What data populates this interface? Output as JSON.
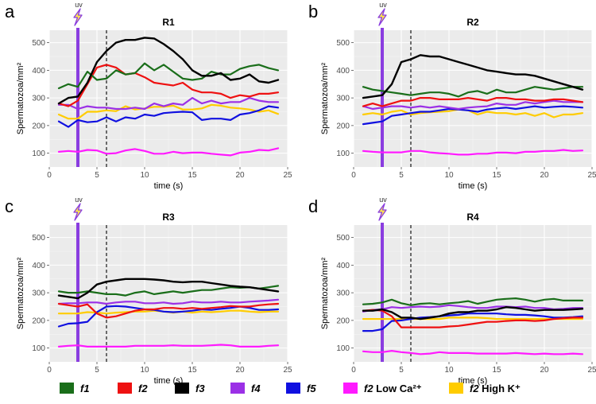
{
  "chart_data": {
    "type": "line",
    "shared": {
      "xlabel": "time (s)",
      "ylabel": "Spermatozoa/mm²",
      "xlim": [
        0,
        25
      ],
      "ylim": [
        50,
        545
      ],
      "xticks": [
        0,
        5,
        10,
        15,
        20,
        25
      ],
      "yticks": [
        100,
        200,
        300,
        400,
        500
      ],
      "uv_time": 3,
      "uv_label": "uv",
      "dashed_time": 6,
      "grid": true,
      "legend_position": "bottom"
    },
    "x": [
      1,
      2,
      3,
      4,
      5,
      6,
      7,
      8,
      9,
      10,
      11,
      12,
      13,
      14,
      15,
      16,
      17,
      18,
      19,
      20,
      21,
      22,
      23,
      24
    ],
    "legend": [
      {
        "key": "f1",
        "name": "f1",
        "suffix": "",
        "color": "#1a6e1a"
      },
      {
        "key": "f2",
        "name": "f2",
        "suffix": "",
        "color": "#ee1111"
      },
      {
        "key": "f3",
        "name": "f3",
        "suffix": "",
        "color": "#000000"
      },
      {
        "key": "f4",
        "name": "f4",
        "suffix": "",
        "color": "#9b30e6"
      },
      {
        "key": "f5",
        "name": "f5",
        "suffix": "",
        "color": "#1010e0"
      },
      {
        "key": "lowca",
        "name": "f2",
        "suffix": " Low Ca²⁺",
        "color": "#ff1aff"
      },
      {
        "key": "highk",
        "name": "f2",
        "suffix": " High K⁺",
        "color": "#ffcc00"
      }
    ],
    "panels": [
      {
        "letter": "a",
        "title": "R1",
        "series": {
          "f1": [
            335,
            350,
            340,
            395,
            365,
            370,
            400,
            385,
            390,
            425,
            400,
            420,
            395,
            370,
            365,
            370,
            395,
            385,
            385,
            405,
            415,
            420,
            408,
            400
          ],
          "f2": [
            280,
            270,
            290,
            350,
            410,
            420,
            410,
            385,
            390,
            375,
            355,
            350,
            345,
            355,
            330,
            320,
            320,
            315,
            300,
            310,
            305,
            315,
            315,
            320
          ],
          "f3": [
            280,
            300,
            305,
            355,
            430,
            470,
            500,
            510,
            510,
            518,
            515,
            495,
            470,
            440,
            400,
            380,
            380,
            390,
            365,
            370,
            385,
            360,
            355,
            365
          ],
          "f4": [
            275,
            275,
            260,
            270,
            265,
            265,
            260,
            260,
            265,
            260,
            280,
            270,
            280,
            275,
            300,
            280,
            290,
            280,
            285,
            285,
            300,
            290,
            285,
            285
          ],
          "f5": [
            215,
            195,
            220,
            212,
            215,
            230,
            215,
            230,
            225,
            240,
            235,
            245,
            248,
            250,
            248,
            220,
            225,
            225,
            220,
            240,
            245,
            255,
            270,
            265
          ],
          "lowca": [
            105,
            108,
            105,
            112,
            110,
            98,
            100,
            110,
            115,
            108,
            98,
            98,
            105,
            100,
            102,
            102,
            98,
            95,
            92,
            102,
            105,
            112,
            110,
            118
          ],
          "highk": [
            240,
            225,
            225,
            250,
            250,
            255,
            252,
            270,
            258,
            262,
            268,
            268,
            272,
            258,
            258,
            262,
            275,
            272,
            265,
            262,
            258,
            250,
            255,
            242
          ]
        }
      },
      {
        "letter": "b",
        "title": "R2",
        "series": {
          "f1": [
            340,
            330,
            325,
            320,
            315,
            310,
            315,
            320,
            320,
            315,
            305,
            320,
            325,
            315,
            330,
            320,
            320,
            330,
            340,
            335,
            330,
            335,
            340,
            340
          ],
          "f2": [
            270,
            280,
            270,
            280,
            290,
            290,
            300,
            300,
            295,
            295,
            295,
            300,
            295,
            290,
            300,
            300,
            295,
            295,
            290,
            290,
            295,
            295,
            290,
            285
          ],
          "f3": [
            300,
            305,
            310,
            350,
            430,
            440,
            455,
            450,
            450,
            440,
            430,
            420,
            410,
            400,
            395,
            390,
            385,
            385,
            380,
            370,
            360,
            350,
            340,
            330
          ],
          "f4": [
            270,
            260,
            265,
            270,
            270,
            265,
            270,
            265,
            270,
            265,
            260,
            265,
            268,
            270,
            280,
            275,
            275,
            285,
            280,
            285,
            290,
            285,
            285,
            285
          ],
          "f5": [
            205,
            210,
            215,
            235,
            240,
            245,
            250,
            250,
            255,
            260,
            258,
            255,
            250,
            258,
            262,
            265,
            260,
            265,
            270,
            265,
            268,
            270,
            268,
            265
          ],
          "lowca": [
            108,
            105,
            103,
            103,
            103,
            108,
            108,
            103,
            100,
            98,
            95,
            95,
            98,
            98,
            102,
            102,
            100,
            105,
            105,
            108,
            108,
            112,
            108,
            110
          ],
          "highk": [
            240,
            245,
            240,
            250,
            255,
            240,
            245,
            248,
            250,
            252,
            258,
            255,
            240,
            250,
            245,
            245,
            240,
            245,
            235,
            245,
            230,
            240,
            240,
            245
          ]
        }
      },
      {
        "letter": "c",
        "title": "R3",
        "series": {
          "f1": [
            305,
            300,
            300,
            305,
            300,
            295,
            295,
            290,
            300,
            305,
            295,
            300,
            305,
            300,
            305,
            310,
            310,
            315,
            320,
            318,
            320,
            315,
            320,
            325
          ],
          "f2": [
            260,
            255,
            250,
            258,
            225,
            210,
            215,
            225,
            235,
            240,
            240,
            245,
            245,
            242,
            245,
            242,
            245,
            248,
            252,
            250,
            250,
            255,
            258,
            260
          ],
          "f3": [
            290,
            285,
            280,
            300,
            330,
            340,
            345,
            350,
            350,
            350,
            348,
            345,
            340,
            338,
            340,
            340,
            335,
            330,
            325,
            322,
            320,
            315,
            310,
            305
          ],
          "f4": [
            260,
            262,
            262,
            265,
            265,
            260,
            265,
            268,
            268,
            262,
            262,
            265,
            260,
            262,
            268,
            265,
            265,
            268,
            265,
            265,
            268,
            270,
            272,
            275
          ],
          "f5": [
            178,
            188,
            190,
            195,
            230,
            250,
            252,
            250,
            245,
            240,
            238,
            232,
            230,
            232,
            235,
            240,
            238,
            242,
            245,
            250,
            245,
            238,
            238,
            240
          ],
          "lowca": [
            105,
            108,
            110,
            105,
            105,
            105,
            105,
            105,
            108,
            108,
            108,
            108,
            110,
            108,
            108,
            108,
            110,
            112,
            110,
            105,
            105,
            105,
            108,
            110
          ],
          "highk": [
            225,
            225,
            225,
            230,
            228,
            225,
            228,
            230,
            232,
            232,
            235,
            232,
            228,
            232,
            228,
            232,
            230,
            232,
            235,
            235,
            232,
            230,
            232,
            232
          ]
        }
      },
      {
        "letter": "d",
        "title": "R4",
        "series": {
          "f1": [
            258,
            260,
            265,
            275,
            262,
            255,
            260,
            262,
            258,
            262,
            265,
            270,
            260,
            268,
            275,
            278,
            280,
            275,
            268,
            275,
            278,
            272,
            272,
            272
          ],
          "f2": [
            235,
            238,
            235,
            215,
            175,
            175,
            175,
            175,
            175,
            178,
            180,
            185,
            190,
            195,
            195,
            198,
            200,
            200,
            198,
            200,
            205,
            208,
            210,
            210
          ],
          "f3": [
            235,
            235,
            240,
            230,
            210,
            210,
            205,
            210,
            215,
            225,
            230,
            230,
            235,
            235,
            240,
            248,
            245,
            240,
            235,
            238,
            238,
            238,
            240,
            242
          ],
          "f4": [
            232,
            238,
            240,
            248,
            245,
            248,
            250,
            248,
            250,
            255,
            252,
            248,
            245,
            245,
            250,
            250,
            248,
            250,
            245,
            245,
            240,
            242,
            245,
            245
          ],
          "f5": [
            162,
            162,
            168,
            198,
            200,
            205,
            210,
            212,
            215,
            218,
            220,
            225,
            225,
            225,
            225,
            222,
            220,
            220,
            218,
            215,
            210,
            210,
            212,
            215
          ],
          "lowca": [
            88,
            85,
            85,
            90,
            85,
            82,
            78,
            80,
            85,
            82,
            82,
            82,
            80,
            80,
            80,
            80,
            82,
            80,
            78,
            80,
            78,
            78,
            80,
            78
          ],
          "highk": [
            205,
            205,
            205,
            205,
            205,
            205,
            205,
            205,
            205,
            210,
            210,
            210,
            210,
            208,
            205,
            205,
            205,
            205,
            205,
            205,
            205,
            205,
            205,
            205
          ]
        }
      }
    ]
  }
}
